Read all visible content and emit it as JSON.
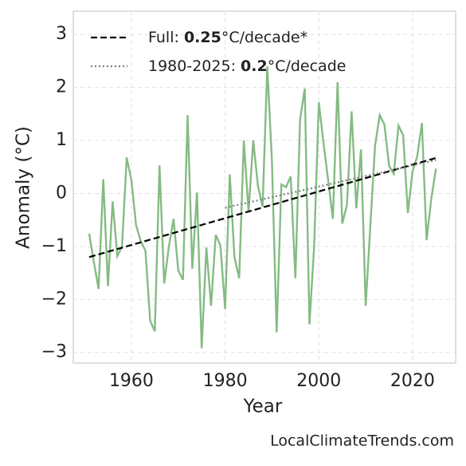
{
  "chart_data": {
    "type": "line",
    "xlabel": "Year",
    "ylabel": "Anomaly (°C)",
    "watermark": "LocalClimateTrends.com",
    "xlim": [
      1947.6,
      2029.2
    ],
    "ylim": [
      -3.2,
      3.44
    ],
    "xticks": [
      1960,
      1980,
      2000,
      2020
    ],
    "yticks": [
      {
        "value": -3,
        "label": "−3"
      },
      {
        "value": -2,
        "label": "−2"
      },
      {
        "value": -1,
        "label": "−1"
      },
      0,
      1,
      2,
      3
    ],
    "grid": true,
    "legend": "upper left",
    "series": [
      {
        "color": "#85bb82",
        "style": "solid",
        "x": [
          1951,
          1952,
          1953,
          1954,
          1955,
          1956,
          1957,
          1958,
          1959,
          1960,
          1961,
          1962,
          1963,
          1964,
          1965,
          1966,
          1967,
          1968,
          1969,
          1970,
          1971,
          1972,
          1973,
          1974,
          1975,
          1976,
          1977,
          1978,
          1979,
          1980,
          1981,
          1982,
          1983,
          1984,
          1985,
          1986,
          1987,
          1988,
          1989,
          1990,
          1991,
          1992,
          1993,
          1994,
          1995,
          1996,
          1997,
          1998,
          1999,
          2000,
          2001,
          2002,
          2003,
          2004,
          2005,
          2006,
          2007,
          2008,
          2009,
          2010,
          2011,
          2012,
          2013,
          2014,
          2015,
          2016,
          2017,
          2018,
          2019,
          2020,
          2021,
          2022,
          2023,
          2024,
          2025
        ],
        "values": [
          -0.76,
          -1.3,
          -1.8,
          0.27,
          -1.75,
          -0.15,
          -1.18,
          -1.0,
          0.68,
          0.25,
          -0.6,
          -0.9,
          -1.08,
          -2.4,
          -2.6,
          0.53,
          -1.7,
          -1.0,
          -0.48,
          -1.45,
          -1.63,
          1.48,
          -1.42,
          0.02,
          -2.92,
          -1.02,
          -2.12,
          -0.78,
          -0.98,
          -2.18,
          0.36,
          -1.2,
          -1.6,
          1.0,
          -0.35,
          1.0,
          0.15,
          -0.25,
          2.4,
          0.6,
          -2.62,
          0.17,
          0.12,
          0.32,
          -1.6,
          1.4,
          1.98,
          -2.47,
          -1.0,
          1.72,
          0.95,
          0.25,
          -0.48,
          2.1,
          -0.57,
          -0.22,
          1.55,
          -0.28,
          0.83,
          -2.12,
          -0.6,
          0.9,
          1.48,
          1.3,
          0.52,
          0.37,
          1.28,
          1.1,
          -0.37,
          0.42,
          0.7,
          1.33,
          -0.88,
          -0.1,
          0.47
        ]
      },
      {
        "name": [
          "Full: ",
          "0.25",
          "°C/decade*"
        ],
        "color": "#000000",
        "style": "dashed",
        "x": [
          1951,
          2025
        ],
        "values": [
          -1.2,
          0.67
        ]
      },
      {
        "name": [
          "1980-2025: ",
          "0.2",
          "°C/decade"
        ],
        "color": "#808080",
        "style": "dotted",
        "x": [
          1980,
          2025
        ],
        "values": [
          -0.27,
          0.63
        ]
      }
    ]
  }
}
